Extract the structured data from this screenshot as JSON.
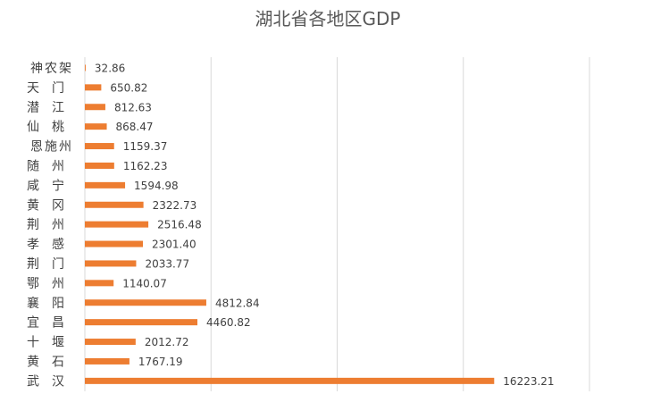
{
  "chart_data": {
    "type": "bar",
    "orientation": "horizontal",
    "title": "湖北省各地区GDP",
    "categories": [
      "神农架",
      "天门",
      "潜江",
      "仙桃",
      "恩施州",
      "随州",
      "咸宁",
      "黄冈",
      "荆州",
      "孝感",
      "荆门",
      "鄂州",
      "襄阳",
      "宜昌",
      "十堰",
      "黄石",
      "武汉"
    ],
    "values": [
      32.86,
      650.82,
      812.63,
      868.47,
      1159.37,
      1162.23,
      1594.98,
      2322.73,
      2516.48,
      2301.4,
      2033.77,
      1140.07,
      4812.84,
      4460.82,
      2012.72,
      1767.19,
      16223.21
    ],
    "value_labels": [
      "32.86",
      "650.82",
      "812.63",
      "868.47",
      "1159.37",
      "1162.23",
      "1594.98",
      "2322.73",
      "2516.48",
      "2301.40",
      "2033.77",
      "1140.07",
      "4812.84",
      "4460.82",
      "2012.72",
      "1767.19",
      "16223.21"
    ],
    "xlim": [
      0,
      20000
    ],
    "grid": true,
    "legend": "none",
    "bar_color": "#ED7D31",
    "grid_color": "#D9D9D9"
  }
}
